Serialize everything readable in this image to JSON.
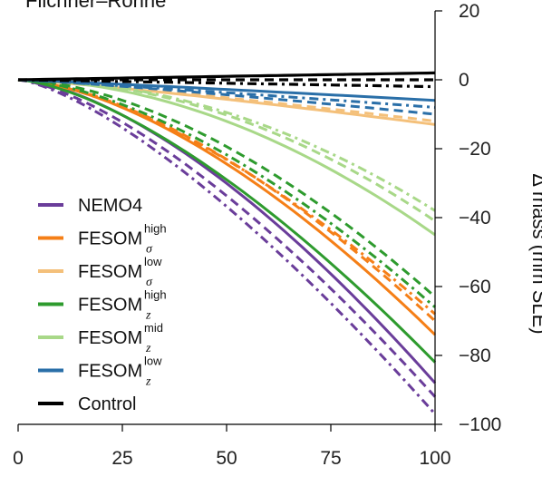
{
  "chart_data": {
    "type": "line",
    "title": "Filchner–Ronne",
    "ylabel": "Δ mass (mm SLE)",
    "xlim": [
      0,
      100
    ],
    "ylim": [
      -100,
      20
    ],
    "x_ticks": [
      "0",
      "25",
      "50",
      "75",
      "100"
    ],
    "y_ticks": [
      "20",
      "0",
      "−20",
      "−40",
      "−60",
      "−80",
      "−100"
    ],
    "legend_position": "left-middle",
    "legend": [
      {
        "base": "NEMO4",
        "sup": "",
        "sub": "",
        "color": "#6a3d9a"
      },
      {
        "base": "FESOM",
        "sup": "high",
        "sub": "σ",
        "color": "#f57f17"
      },
      {
        "base": "FESOM",
        "sup": "low",
        "sub": "σ",
        "color": "#f4c07a"
      },
      {
        "base": "FESOM",
        "sup": "high",
        "sub": "z",
        "color": "#2e9b2e"
      },
      {
        "base": "FESOM",
        "sup": "mid",
        "sub": "z",
        "color": "#a8d888"
      },
      {
        "base": "FESOM",
        "sup": "low",
        "sub": "z",
        "color": "#2a6fa8"
      },
      {
        "base": "Control",
        "sup": "",
        "sub": "",
        "color": "#000000"
      }
    ],
    "series": [
      {
        "color": "#6a3d9a",
        "style": "solid",
        "end": -88,
        "shape": 1.55
      },
      {
        "color": "#6a3d9a",
        "style": "dash",
        "end": -92,
        "shape": 1.45
      },
      {
        "color": "#6a3d9a",
        "style": "dashdot",
        "end": -97,
        "shape": 1.4
      },
      {
        "color": "#f57f17",
        "style": "solid",
        "end": -74,
        "shape": 1.6
      },
      {
        "color": "#f57f17",
        "style": "dash",
        "end": -70,
        "shape": 1.6
      },
      {
        "color": "#f57f17",
        "style": "dashdot",
        "end": -68,
        "shape": 1.55
      },
      {
        "color": "#f4c07a",
        "style": "solid",
        "end": -13,
        "shape": 1.2
      },
      {
        "color": "#f4c07a",
        "style": "dash",
        "end": -12,
        "shape": 1.2
      },
      {
        "color": "#2e9b2e",
        "style": "solid",
        "end": -82,
        "shape": 1.5
      },
      {
        "color": "#2e9b2e",
        "style": "dash",
        "end": -63,
        "shape": 1.7
      },
      {
        "color": "#2e9b2e",
        "style": "dashdot",
        "end": -66,
        "shape": 1.6
      },
      {
        "color": "#a8d888",
        "style": "solid",
        "end": -45,
        "shape": 1.9
      },
      {
        "color": "#a8d888",
        "style": "dash",
        "end": -41,
        "shape": 2.0
      },
      {
        "color": "#a8d888",
        "style": "dashdot",
        "end": -38,
        "shape": 2.0
      },
      {
        "color": "#2a6fa8",
        "style": "solid",
        "end": -6,
        "shape": 1.1
      },
      {
        "color": "#2a6fa8",
        "style": "dash",
        "end": -10,
        "shape": 1.2
      },
      {
        "color": "#2a6fa8",
        "style": "dashdot",
        "end": -8,
        "shape": 1.1
      },
      {
        "color": "#000000",
        "style": "solid",
        "end": 2,
        "shape": 1.0
      },
      {
        "color": "#000000",
        "style": "dash",
        "end": 0,
        "shape": 1.0
      },
      {
        "color": "#000000",
        "style": "dashdot",
        "end": -2,
        "shape": 1.0
      }
    ]
  }
}
